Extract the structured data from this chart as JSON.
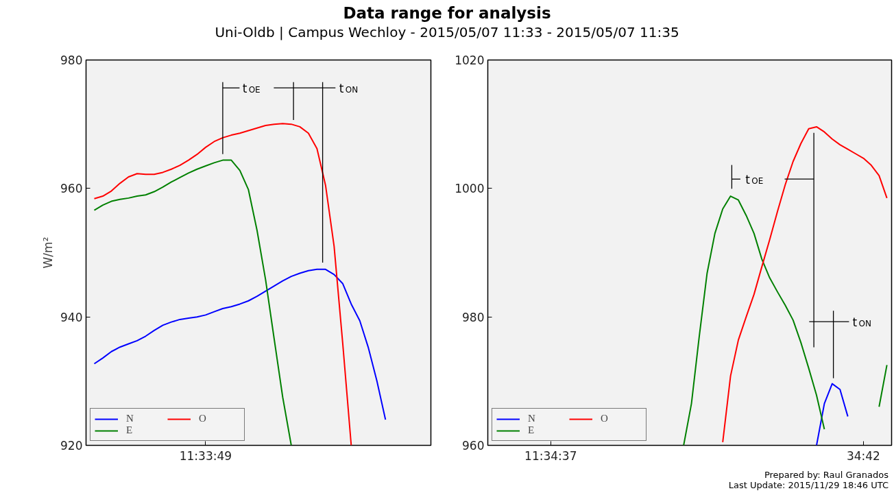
{
  "chart_data": [
    {
      "type": "line",
      "title": "Data range for analysis",
      "subtitle": "Uni-Oldb | Campus Wechloy - 2015/05/07 11:33 - 2015/05/07 11:35",
      "ylabel": "W/m²",
      "categories": [
        null,
        null,
        null,
        null,
        null,
        null,
        null,
        null,
        null,
        null,
        null,
        null,
        null,
        "11:33:49",
        null,
        null,
        null,
        null,
        null,
        null,
        null,
        null,
        null,
        null,
        null,
        null,
        null,
        null,
        null,
        null,
        null,
        null,
        null,
        null,
        null,
        null,
        null,
        null,
        null
      ],
      "series": [
        {
          "name": "N",
          "color": "#0000ff",
          "values": [
            932.7,
            933.6,
            934.6,
            935.3,
            935.8,
            936.3,
            937.0,
            937.9,
            938.7,
            939.2,
            939.6,
            939.8,
            940.0,
            940.3,
            940.8,
            941.3,
            941.6,
            942.0,
            942.5,
            943.2,
            944.0,
            944.8,
            945.6,
            946.3,
            946.8,
            947.2,
            947.4,
            947.4,
            946.6,
            945.2,
            942.0,
            939.4,
            935.2,
            930.0,
            924.0,
            null,
            null,
            null,
            null
          ]
        },
        {
          "name": "E",
          "color": "#008000",
          "values": [
            956.6,
            957.4,
            958.0,
            958.3,
            958.5,
            958.8,
            959.0,
            959.5,
            960.2,
            961.0,
            961.7,
            962.4,
            963.0,
            963.5,
            964.0,
            964.4,
            964.4,
            962.8,
            959.8,
            953.5,
            945.8,
            936.6,
            927.5,
            920.0,
            null,
            null,
            null,
            null,
            null,
            null,
            null,
            null,
            null,
            null,
            null,
            null,
            null,
            null,
            null
          ]
        },
        {
          "name": "O",
          "color": "#ff0000",
          "values": [
            958.4,
            958.8,
            959.6,
            960.8,
            961.8,
            962.3,
            962.2,
            962.2,
            962.5,
            963.0,
            963.6,
            964.4,
            965.3,
            966.4,
            967.3,
            967.9,
            968.3,
            968.6,
            969.0,
            969.4,
            969.8,
            970.0,
            970.1,
            970.0,
            969.6,
            968.6,
            966.2,
            960.5,
            951.0,
            936.0,
            920.0,
            null,
            null,
            null,
            null,
            null,
            null,
            null,
            null
          ]
        }
      ],
      "ylim": [
        920,
        980
      ],
      "yticks": [
        920,
        940,
        960,
        980
      ],
      "grid": false,
      "legend": "bottom left",
      "marker": "none",
      "line_style": "solid",
      "annotations": [
        "t$_{OE}$",
        "t$_{ON}$"
      ]
    },
    {
      "type": "line",
      "categories": [
        null,
        null,
        null,
        null,
        null,
        null,
        null,
        null,
        "11:34:37",
        null,
        null,
        null,
        null,
        null,
        null,
        null,
        null,
        null,
        null,
        null,
        null,
        null,
        null,
        null,
        null,
        null,
        null,
        null,
        null,
        null,
        null,
        null,
        null,
        null,
        null,
        null,
        null,
        null,
        null,
        null,
        null,
        null,
        null,
        null,
        null,
        null,
        null,
        null,
        "34:42",
        null,
        null,
        null
      ],
      "series": [
        {
          "name": "N",
          "color": "#0000ff",
          "values": [
            null,
            null,
            null,
            null,
            null,
            null,
            null,
            null,
            null,
            null,
            null,
            null,
            null,
            null,
            null,
            null,
            null,
            null,
            null,
            null,
            null,
            null,
            null,
            null,
            null,
            null,
            null,
            null,
            null,
            null,
            null,
            null,
            null,
            null,
            null,
            null,
            null,
            null,
            null,
            null,
            null,
            null,
            960.0,
            966.5,
            969.6,
            968.7,
            964.5,
            null,
            null,
            null,
            null,
            null
          ]
        },
        {
          "name": "E",
          "color": "#008000",
          "values": [
            null,
            null,
            null,
            null,
            null,
            null,
            null,
            null,
            null,
            null,
            null,
            null,
            null,
            null,
            null,
            null,
            null,
            null,
            null,
            null,
            null,
            null,
            null,
            null,
            null,
            960.0,
            966.5,
            977.0,
            986.8,
            993.0,
            996.8,
            998.8,
            998.2,
            995.8,
            993.0,
            989.0,
            986.1,
            983.9,
            981.8,
            979.5,
            976.0,
            972.0,
            967.8,
            962.5,
            null,
            null,
            null,
            null,
            null,
            null,
            966.0,
            972.5
          ]
        },
        {
          "name": "O",
          "color": "#ff0000",
          "values": [
            null,
            null,
            null,
            null,
            null,
            null,
            null,
            null,
            null,
            null,
            null,
            null,
            null,
            null,
            null,
            null,
            null,
            null,
            null,
            null,
            null,
            null,
            null,
            null,
            null,
            null,
            null,
            null,
            null,
            null,
            960.5,
            970.8,
            976.4,
            980.0,
            983.5,
            987.8,
            992.0,
            996.4,
            1000.6,
            1004.2,
            1007.0,
            1009.3,
            1009.6,
            1008.8,
            1007.7,
            1006.8,
            1006.1,
            1005.4,
            1004.7,
            1003.6,
            1002.0,
            998.5
          ]
        }
      ],
      "ylim": [
        960,
        1020
      ],
      "yticks": [
        960,
        980,
        1000,
        1020
      ],
      "grid": false,
      "legend": "bottom left",
      "marker": "none",
      "line_style": "solid",
      "annotations": [
        "t$_{OE}$",
        "t$_{ON}$",
        "Prepared by: Raul Granados",
        "Last Update: 2015/11/29 18:46 UTC"
      ]
    }
  ]
}
